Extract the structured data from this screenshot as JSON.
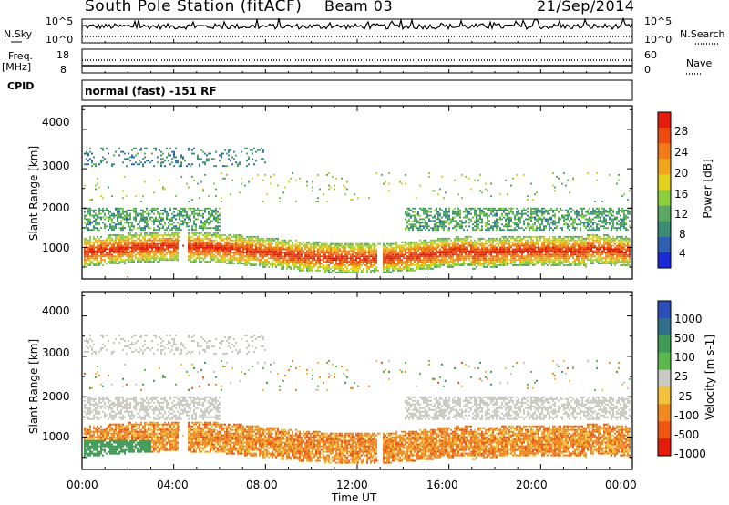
{
  "header": {
    "station": "South Pole Station (fitACF)",
    "beam": "Beam 03",
    "date": "21/Sep/2014",
    "mode": "normal (fast) -151 RF"
  },
  "top_panels": {
    "nsky_label": "N.Sky",
    "nsky_ticks": [
      "10^5",
      "10^0"
    ],
    "nsearch_label": "N.Search",
    "nsearch_ticks": [
      "10^5",
      "10^0"
    ],
    "freq_label": "Freq.",
    "freq_unit": "[MHz]",
    "freq_ticks": [
      "18",
      "8"
    ],
    "nave_label": "Nave",
    "nave_ticks": [
      "60",
      "0"
    ],
    "cpid_label": "CPID"
  },
  "colors": {
    "scale": [
      "#1a2bd6",
      "#2e5fb0",
      "#3a8c74",
      "#5aa860",
      "#8ccf3c",
      "#e4d21a",
      "#f2a51c",
      "#f07a16",
      "#ee4a10",
      "#e51b0b"
    ],
    "velocity_scale": [
      "#e51b0b",
      "#ef5512",
      "#f08a1f",
      "#f2c23a",
      "#c9c9c0",
      "#5ab84a",
      "#3e9a55",
      "#2f6f8c",
      "#2a4fb8"
    ]
  },
  "chart_data": [
    {
      "type": "heatmap",
      "title": "",
      "xlabel": "Time UT",
      "ylabel": "Slant Range [km]",
      "xlim": [
        0,
        24
      ],
      "ylim": [
        200,
        4600
      ],
      "x_ticks": [
        "00:00",
        "04:00",
        "08:00",
        "12:00",
        "16:00",
        "20:00",
        "00:00"
      ],
      "y_ticks": [
        "1000",
        "2000",
        "3000",
        "4000"
      ],
      "colorbar": {
        "label": "Power [dB]",
        "range": [
          0,
          32
        ],
        "ticks": [
          "28",
          "24",
          "20",
          "16",
          "12",
          "8",
          "4"
        ]
      },
      "summary": {
        "main_echo_band_km": [
          600,
          1200
        ],
        "secondary_band_km": [
          1400,
          2000
        ],
        "far_range_band_km": [
          3000,
          3500
        ],
        "peak_power_dB": 30
      }
    },
    {
      "type": "heatmap",
      "title": "",
      "xlabel": "Time UT",
      "ylabel": "Slant Range [km]",
      "xlim": [
        0,
        24
      ],
      "ylim": [
        200,
        4600
      ],
      "x_ticks": [
        "00:00",
        "04:00",
        "08:00",
        "12:00",
        "16:00",
        "20:00",
        "00:00"
      ],
      "y_ticks": [
        "1000",
        "2000",
        "3000",
        "4000"
      ],
      "colorbar": {
        "label": "Velocity [m s-1]",
        "ticks": [
          "1000",
          "500",
          "100",
          "25",
          "-25",
          "-100",
          "-500",
          "-1000"
        ]
      },
      "summary": {
        "dominant_velocity_m_s": -150,
        "near_range_velocity_m_s": 120,
        "far_range_velocity_m_s": 0
      }
    }
  ]
}
